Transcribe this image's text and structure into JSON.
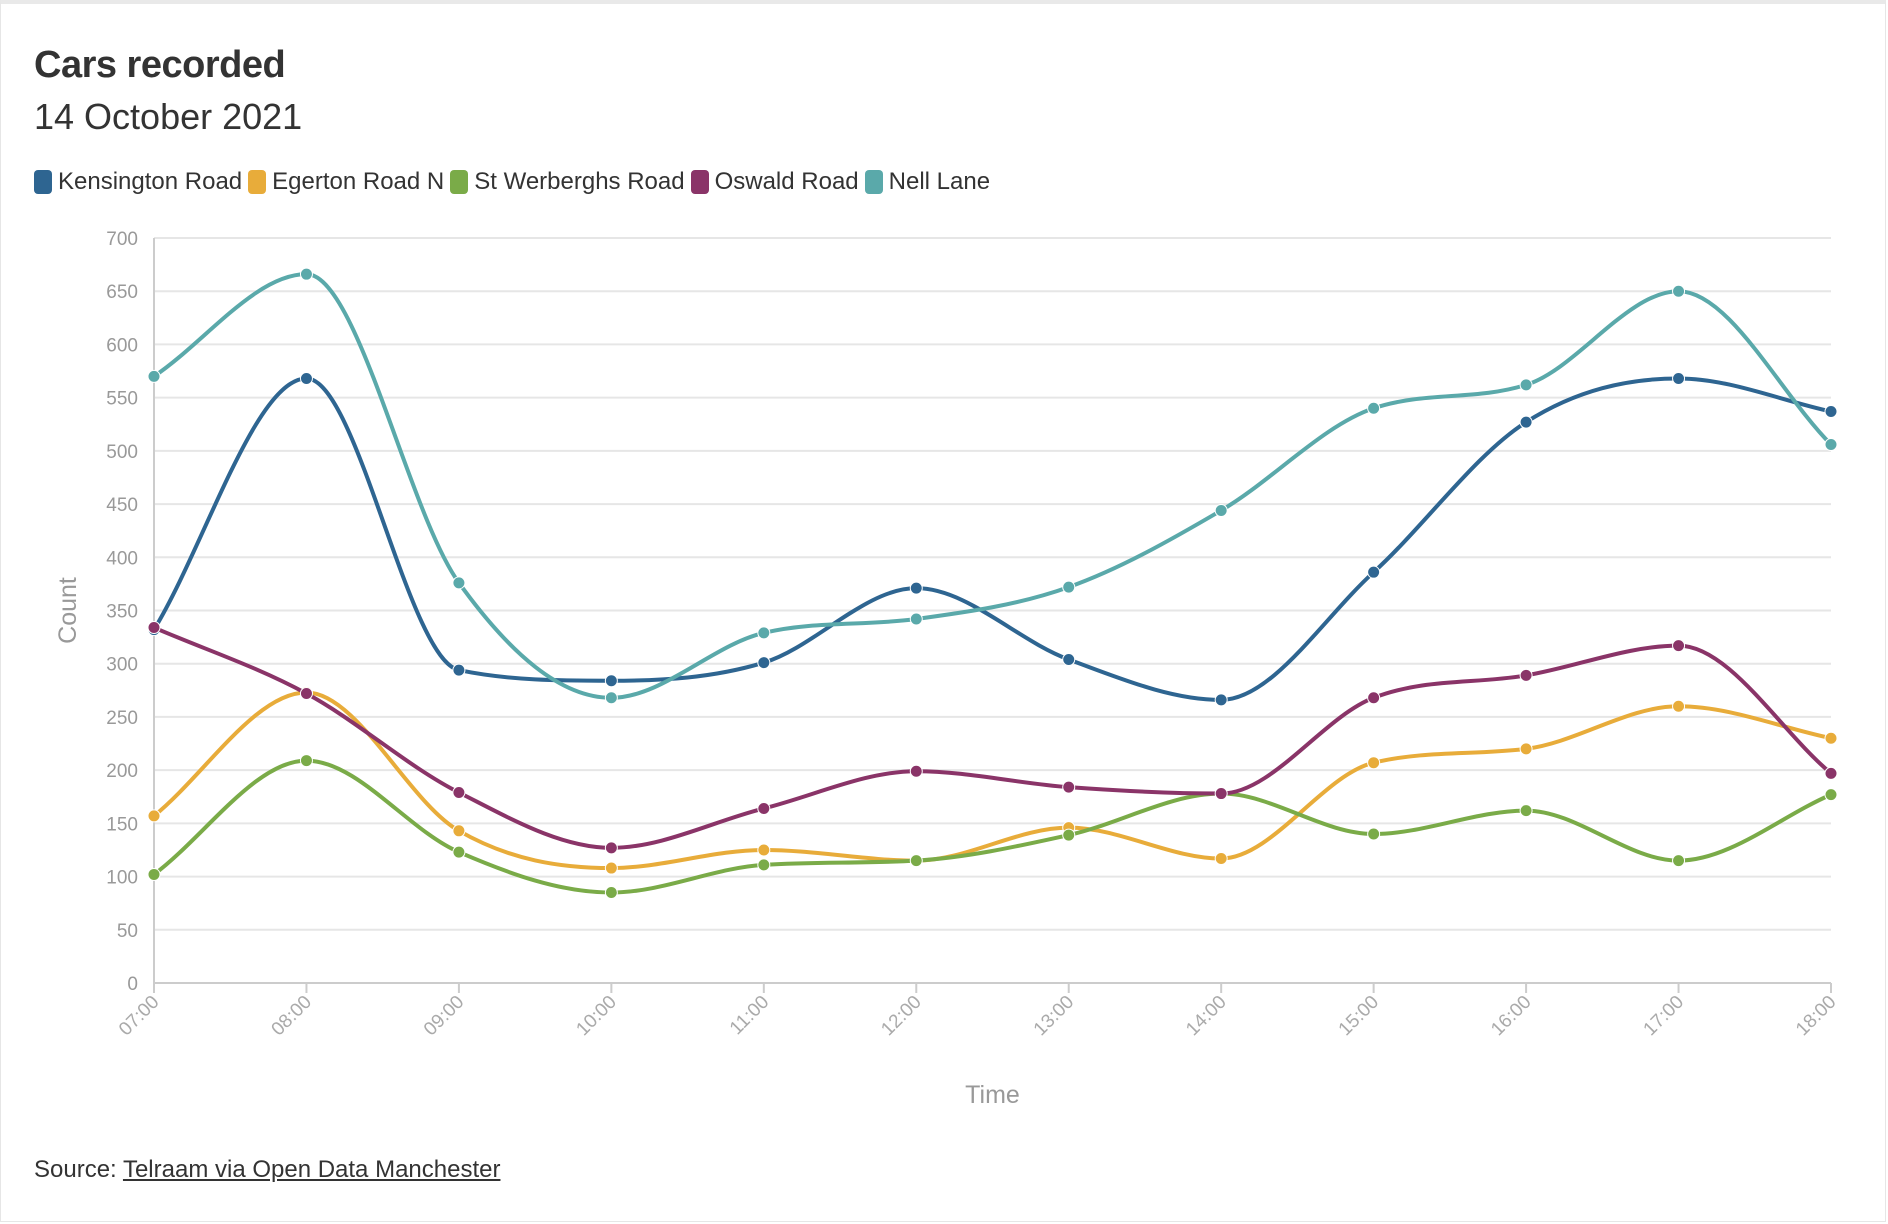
{
  "header": {
    "title": "Cars recorded",
    "subtitle": "14 October 2021"
  },
  "footer": {
    "source_prefix": "Source: ",
    "source_link": "Telraam via Open Data Manchester"
  },
  "chart_data": {
    "type": "line",
    "title": "Cars recorded",
    "subtitle": "14 October 2021",
    "xlabel": "Time",
    "ylabel": "Count",
    "x": [
      "07:00",
      "08:00",
      "09:00",
      "10:00",
      "11:00",
      "12:00",
      "13:00",
      "14:00",
      "15:00",
      "16:00",
      "17:00",
      "18:00"
    ],
    "ylim": [
      0,
      700
    ],
    "yticks": [
      0,
      50,
      100,
      150,
      200,
      250,
      300,
      350,
      400,
      450,
      500,
      550,
      600,
      650,
      700
    ],
    "grid": true,
    "legend_position": "top-left",
    "series": [
      {
        "name": "Kensington Road",
        "color": "#2e6591",
        "values": [
          332,
          568,
          294,
          284,
          301,
          371,
          304,
          266,
          386,
          527,
          568,
          537
        ]
      },
      {
        "name": "Egerton Road N",
        "color": "#e8ac3a",
        "values": [
          157,
          273,
          143,
          108,
          125,
          115,
          146,
          117,
          207,
          220,
          260,
          230
        ]
      },
      {
        "name": "St Werberghs Road",
        "color": "#7aab48",
        "values": [
          102,
          209,
          123,
          85,
          111,
          115,
          139,
          178,
          140,
          162,
          115,
          177
        ]
      },
      {
        "name": "Oswald Road",
        "color": "#8a3468",
        "values": [
          334,
          272,
          179,
          127,
          164,
          199,
          184,
          178,
          268,
          289,
          317,
          197
        ]
      },
      {
        "name": "Nell Lane",
        "color": "#5aa9aa",
        "values": [
          570,
          666,
          376,
          268,
          329,
          342,
          372,
          444,
          540,
          562,
          650,
          506
        ]
      }
    ]
  }
}
